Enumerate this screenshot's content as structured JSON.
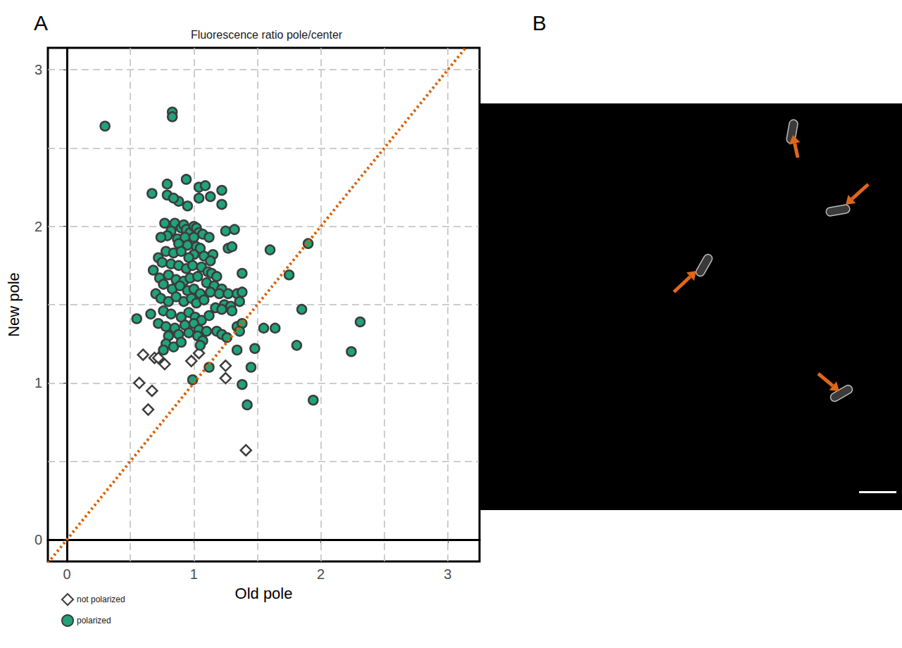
{
  "chart_data": {
    "type": "scatter",
    "panel_label": "A",
    "title": "Fluorescence ratio pole/center",
    "x_label": "Old pole",
    "y_label": "New pole",
    "xlim": [
      -0.15,
      3.25
    ],
    "ylim": [
      -0.14,
      3.14
    ],
    "xticks": [
      0,
      1,
      2,
      3
    ],
    "yticks": [
      0,
      1,
      2,
      3
    ],
    "grid": true,
    "legend": "bottom-left",
    "reference_line": {
      "x": [
        -0.15,
        3.25
      ],
      "y": [
        -0.15,
        3.25
      ],
      "color": "#d95f02",
      "line_style": "dotted"
    },
    "series": [
      {
        "name": "not polarized",
        "color": "#ffffff",
        "marker": "diamond",
        "values": [
          [
            0.6,
            1.18
          ],
          [
            0.57,
            1.0
          ],
          [
            0.67,
            0.95
          ],
          [
            0.64,
            0.83
          ],
          [
            0.69,
            1.16
          ],
          [
            0.72,
            1.16
          ],
          [
            0.77,
            1.12
          ],
          [
            0.98,
            1.14
          ],
          [
            1.04,
            1.19
          ],
          [
            1.25,
            1.11
          ],
          [
            1.25,
            1.03
          ],
          [
            1.41,
            0.57
          ]
        ]
      },
      {
        "name": "polarized",
        "color": "#1fa37a",
        "marker": "circle",
        "values": [
          [
            0.3,
            2.64
          ],
          [
            0.83,
            2.73
          ],
          [
            0.83,
            2.7
          ],
          [
            0.94,
            2.3
          ],
          [
            1.04,
            2.25
          ],
          [
            1.09,
            2.26
          ],
          [
            0.79,
            2.27
          ],
          [
            0.67,
            2.21
          ],
          [
            0.79,
            2.2
          ],
          [
            0.88,
            2.16
          ],
          [
            0.84,
            2.18
          ],
          [
            1.04,
            2.18
          ],
          [
            1.13,
            2.19
          ],
          [
            1.22,
            2.23
          ],
          [
            1.22,
            2.14
          ],
          [
            0.95,
            2.13
          ],
          [
            0.77,
            2.02
          ],
          [
            0.85,
            2.02
          ],
          [
            0.9,
            1.99
          ],
          [
            0.92,
            2.01
          ],
          [
            0.94,
            1.98
          ],
          [
            0.97,
            1.96
          ],
          [
            1.0,
            2.0
          ],
          [
            1.02,
            1.99
          ],
          [
            1.04,
            1.96
          ],
          [
            0.82,
            1.97
          ],
          [
            0.79,
            1.94
          ],
          [
            0.74,
            1.93
          ],
          [
            0.87,
            1.92
          ],
          [
            0.93,
            1.93
          ],
          [
            1.0,
            1.93
          ],
          [
            1.07,
            1.95
          ],
          [
            1.12,
            1.93
          ],
          [
            1.25,
            1.97
          ],
          [
            1.32,
            1.98
          ],
          [
            1.27,
            1.86
          ],
          [
            1.3,
            1.87
          ],
          [
            0.88,
            1.89
          ],
          [
            0.95,
            1.88
          ],
          [
            1.02,
            1.87
          ],
          [
            1.05,
            1.86
          ],
          [
            1.0,
            1.82
          ],
          [
            0.78,
            1.84
          ],
          [
            0.84,
            1.83
          ],
          [
            0.9,
            1.84
          ],
          [
            0.96,
            1.8
          ],
          [
            1.08,
            1.81
          ],
          [
            1.15,
            1.82
          ],
          [
            1.13,
            1.78
          ],
          [
            0.72,
            1.8
          ],
          [
            0.75,
            1.77
          ],
          [
            0.82,
            1.76
          ],
          [
            0.88,
            1.75
          ],
          [
            0.94,
            1.73
          ],
          [
            0.99,
            1.75
          ],
          [
            1.06,
            1.74
          ],
          [
            1.11,
            1.71
          ],
          [
            1.14,
            1.7
          ],
          [
            1.18,
            1.68
          ],
          [
            0.68,
            1.72
          ],
          [
            0.73,
            1.67
          ],
          [
            0.8,
            1.69
          ],
          [
            0.86,
            1.66
          ],
          [
            0.92,
            1.65
          ],
          [
            0.97,
            1.67
          ],
          [
            1.03,
            1.68
          ],
          [
            1.1,
            1.64
          ],
          [
            1.16,
            1.62
          ],
          [
            1.22,
            1.6
          ],
          [
            0.76,
            1.63
          ],
          [
            0.83,
            1.6
          ],
          [
            0.89,
            1.62
          ],
          [
            0.95,
            1.59
          ],
          [
            1.0,
            1.6
          ],
          [
            1.05,
            1.57
          ],
          [
            1.13,
            1.58
          ],
          [
            1.2,
            1.57
          ],
          [
            1.27,
            1.57
          ],
          [
            1.34,
            1.57
          ],
          [
            1.38,
            1.58
          ],
          [
            1.38,
            1.7
          ],
          [
            0.7,
            1.57
          ],
          [
            0.74,
            1.54
          ],
          [
            0.8,
            1.52
          ],
          [
            0.86,
            1.55
          ],
          [
            0.92,
            1.52
          ],
          [
            0.98,
            1.54
          ],
          [
            1.02,
            1.51
          ],
          [
            1.08,
            1.53
          ],
          [
            1.17,
            1.48
          ],
          [
            1.24,
            1.5
          ],
          [
            1.29,
            1.49
          ],
          [
            1.36,
            1.52
          ],
          [
            0.66,
            1.44
          ],
          [
            0.55,
            1.41
          ],
          [
            0.76,
            1.46
          ],
          [
            0.82,
            1.44
          ],
          [
            0.9,
            1.42
          ],
          [
            0.96,
            1.45
          ],
          [
            1.01,
            1.42
          ],
          [
            1.06,
            1.4
          ],
          [
            1.12,
            1.43
          ],
          [
            1.22,
            1.47
          ],
          [
            1.3,
            1.46
          ],
          [
            0.72,
            1.38
          ],
          [
            0.78,
            1.36
          ],
          [
            0.85,
            1.35
          ],
          [
            0.93,
            1.37
          ],
          [
            1.0,
            1.38
          ],
          [
            1.04,
            1.34
          ],
          [
            1.1,
            1.33
          ],
          [
            1.18,
            1.33
          ],
          [
            1.22,
            1.31
          ],
          [
            1.26,
            1.29
          ],
          [
            1.34,
            1.36
          ],
          [
            0.8,
            1.3
          ],
          [
            0.88,
            1.31
          ],
          [
            0.96,
            1.32
          ],
          [
            1.03,
            1.3
          ],
          [
            1.07,
            1.27
          ],
          [
            0.78,
            1.25
          ],
          [
            0.84,
            1.23
          ],
          [
            0.9,
            1.26
          ],
          [
            1.05,
            1.24
          ],
          [
            0.76,
            1.21
          ],
          [
            1.6,
            1.85
          ],
          [
            1.75,
            1.69
          ],
          [
            1.9,
            1.89
          ],
          [
            1.85,
            1.47
          ],
          [
            1.81,
            1.24
          ],
          [
            2.24,
            1.2
          ],
          [
            2.31,
            1.39
          ],
          [
            1.94,
            0.89
          ],
          [
            1.55,
            1.35
          ],
          [
            1.64,
            1.35
          ],
          [
            1.48,
            1.22
          ],
          [
            1.45,
            1.1
          ],
          [
            1.42,
            0.86
          ],
          [
            1.38,
            0.99
          ],
          [
            1.34,
            1.21
          ],
          [
            0.99,
            1.02
          ],
          [
            1.12,
            1.1
          ],
          [
            1.38,
            1.38
          ],
          [
            1.36,
            1.33
          ]
        ]
      }
    ]
  },
  "image_panel": {
    "panel_label": "B"
  }
}
